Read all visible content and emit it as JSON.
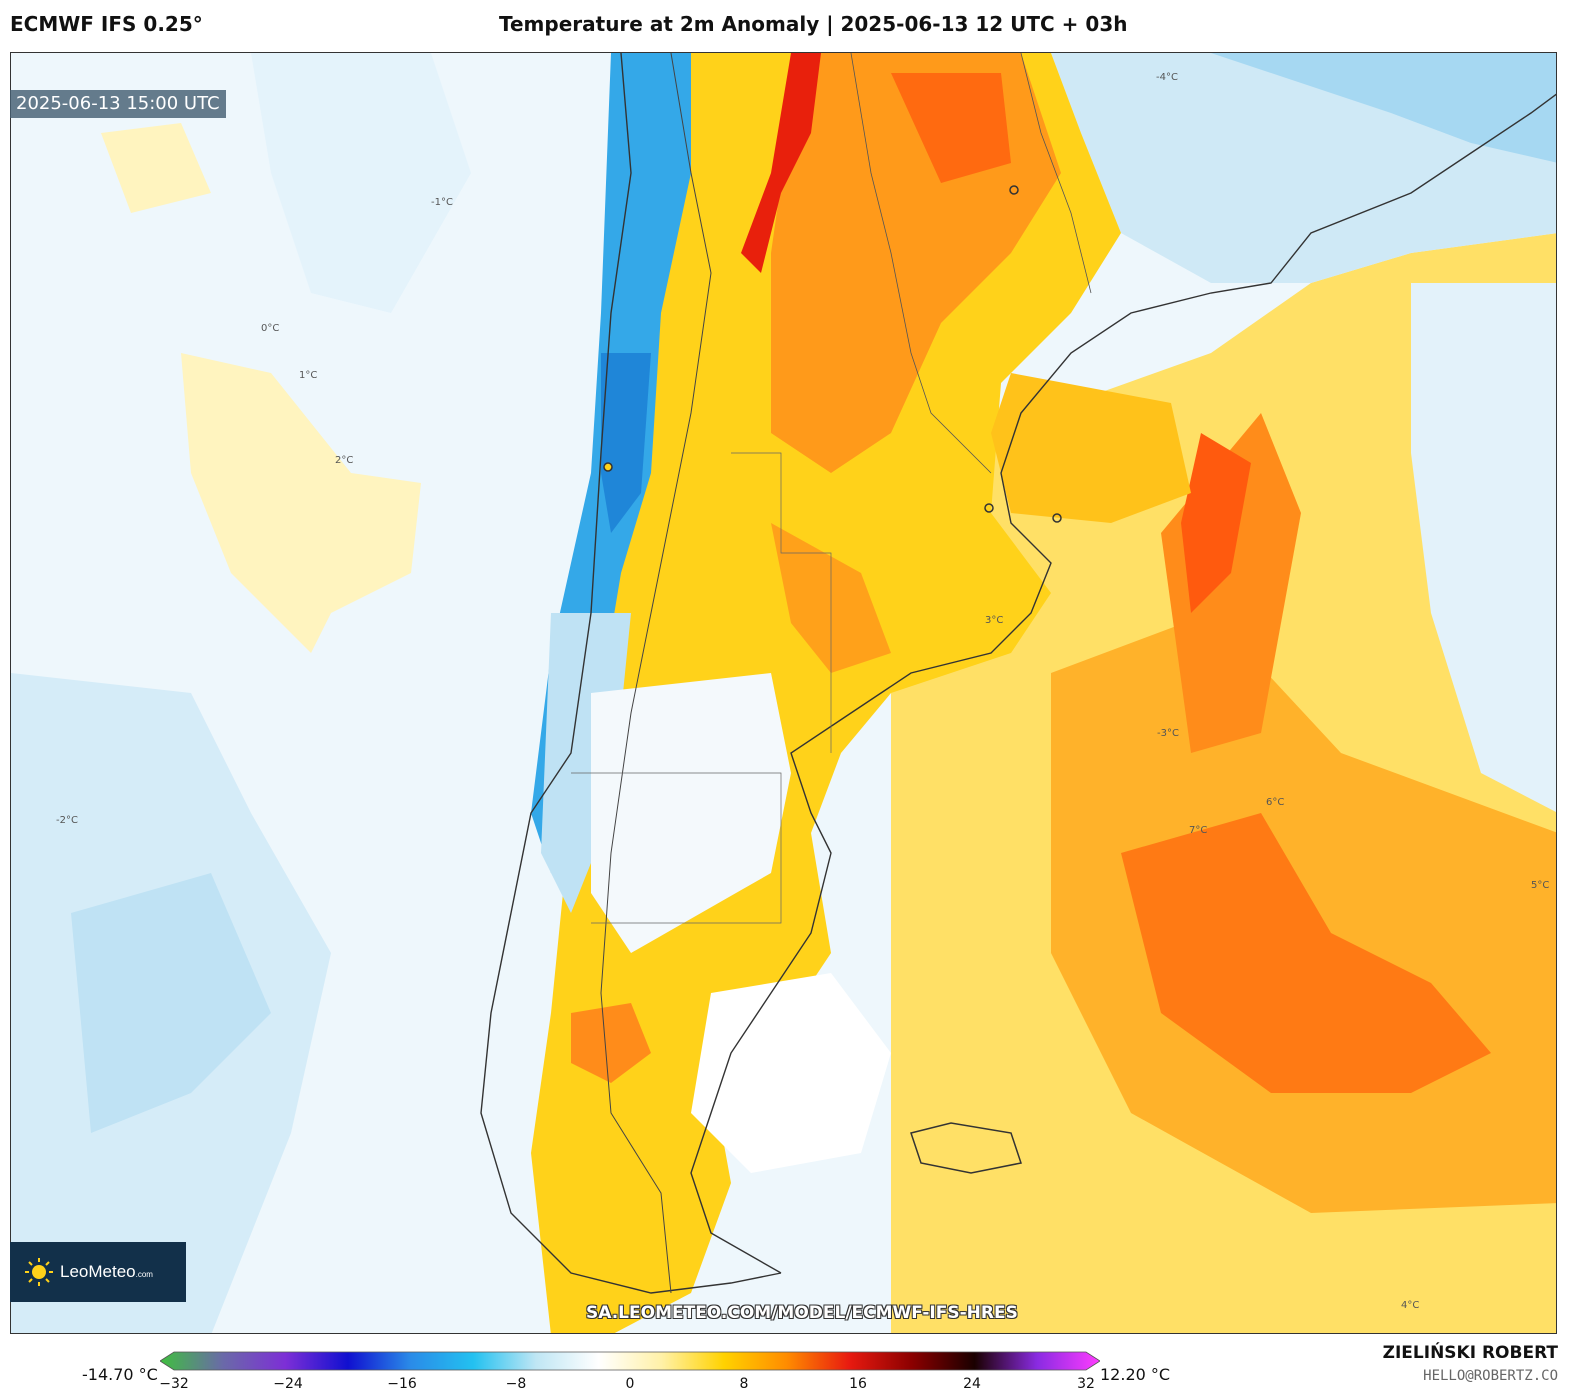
{
  "header": {
    "model": "ECMWF IFS 0.25°",
    "title": "Temperature at 2m Anomaly | 2025-06-13 12 UTC + 03h"
  },
  "map": {
    "valid_time": "2025-06-13 15:00 UTC",
    "watermark_url": "SA.LEOMETEO.COM/MODEL/ECMWF-IFS-HRES",
    "contour_labels": [
      "0°C",
      "1°C",
      "-1°C",
      "2°C",
      "-2°C",
      "3°C",
      "-3°C",
      "4°C",
      "-4°C",
      "5°C",
      "6°C",
      "7°C"
    ]
  },
  "logo": {
    "name": "LeoMeteo",
    "suffix": ".com"
  },
  "colorbar": {
    "min_label": "-14.70 °C",
    "max_label": "12.20 °C",
    "ticks": [
      "−32",
      "−24",
      "−16",
      "−8",
      "0",
      "8",
      "16",
      "24",
      "32"
    ],
    "range": [
      -32,
      32
    ],
    "colors": [
      "#3fbf3f",
      "#6a6aa8",
      "#7d2fd6",
      "#1010d0",
      "#2a8be8",
      "#23c1f0",
      "#bfe6f4",
      "#ffffff",
      "#fff1a8",
      "#ffd200",
      "#ff8c00",
      "#e81a10",
      "#8b0000",
      "#1a0000",
      "#8a2be2",
      "#ff3cff"
    ]
  },
  "credits": {
    "author": "ZIELIŃSKI ROBERT",
    "email": "HELLO@ROBERTZ.CO"
  },
  "palette": {
    "ocean_light": "#eaf5fb",
    "cold_blue": "#34a8e8",
    "light_blue": "#c9e7f5",
    "pale_yellow": "#fff2a8",
    "yellow": "#ffd21a",
    "orange": "#ffa11a",
    "deep_orange": "#ff6a10",
    "red": "#e8200c"
  }
}
